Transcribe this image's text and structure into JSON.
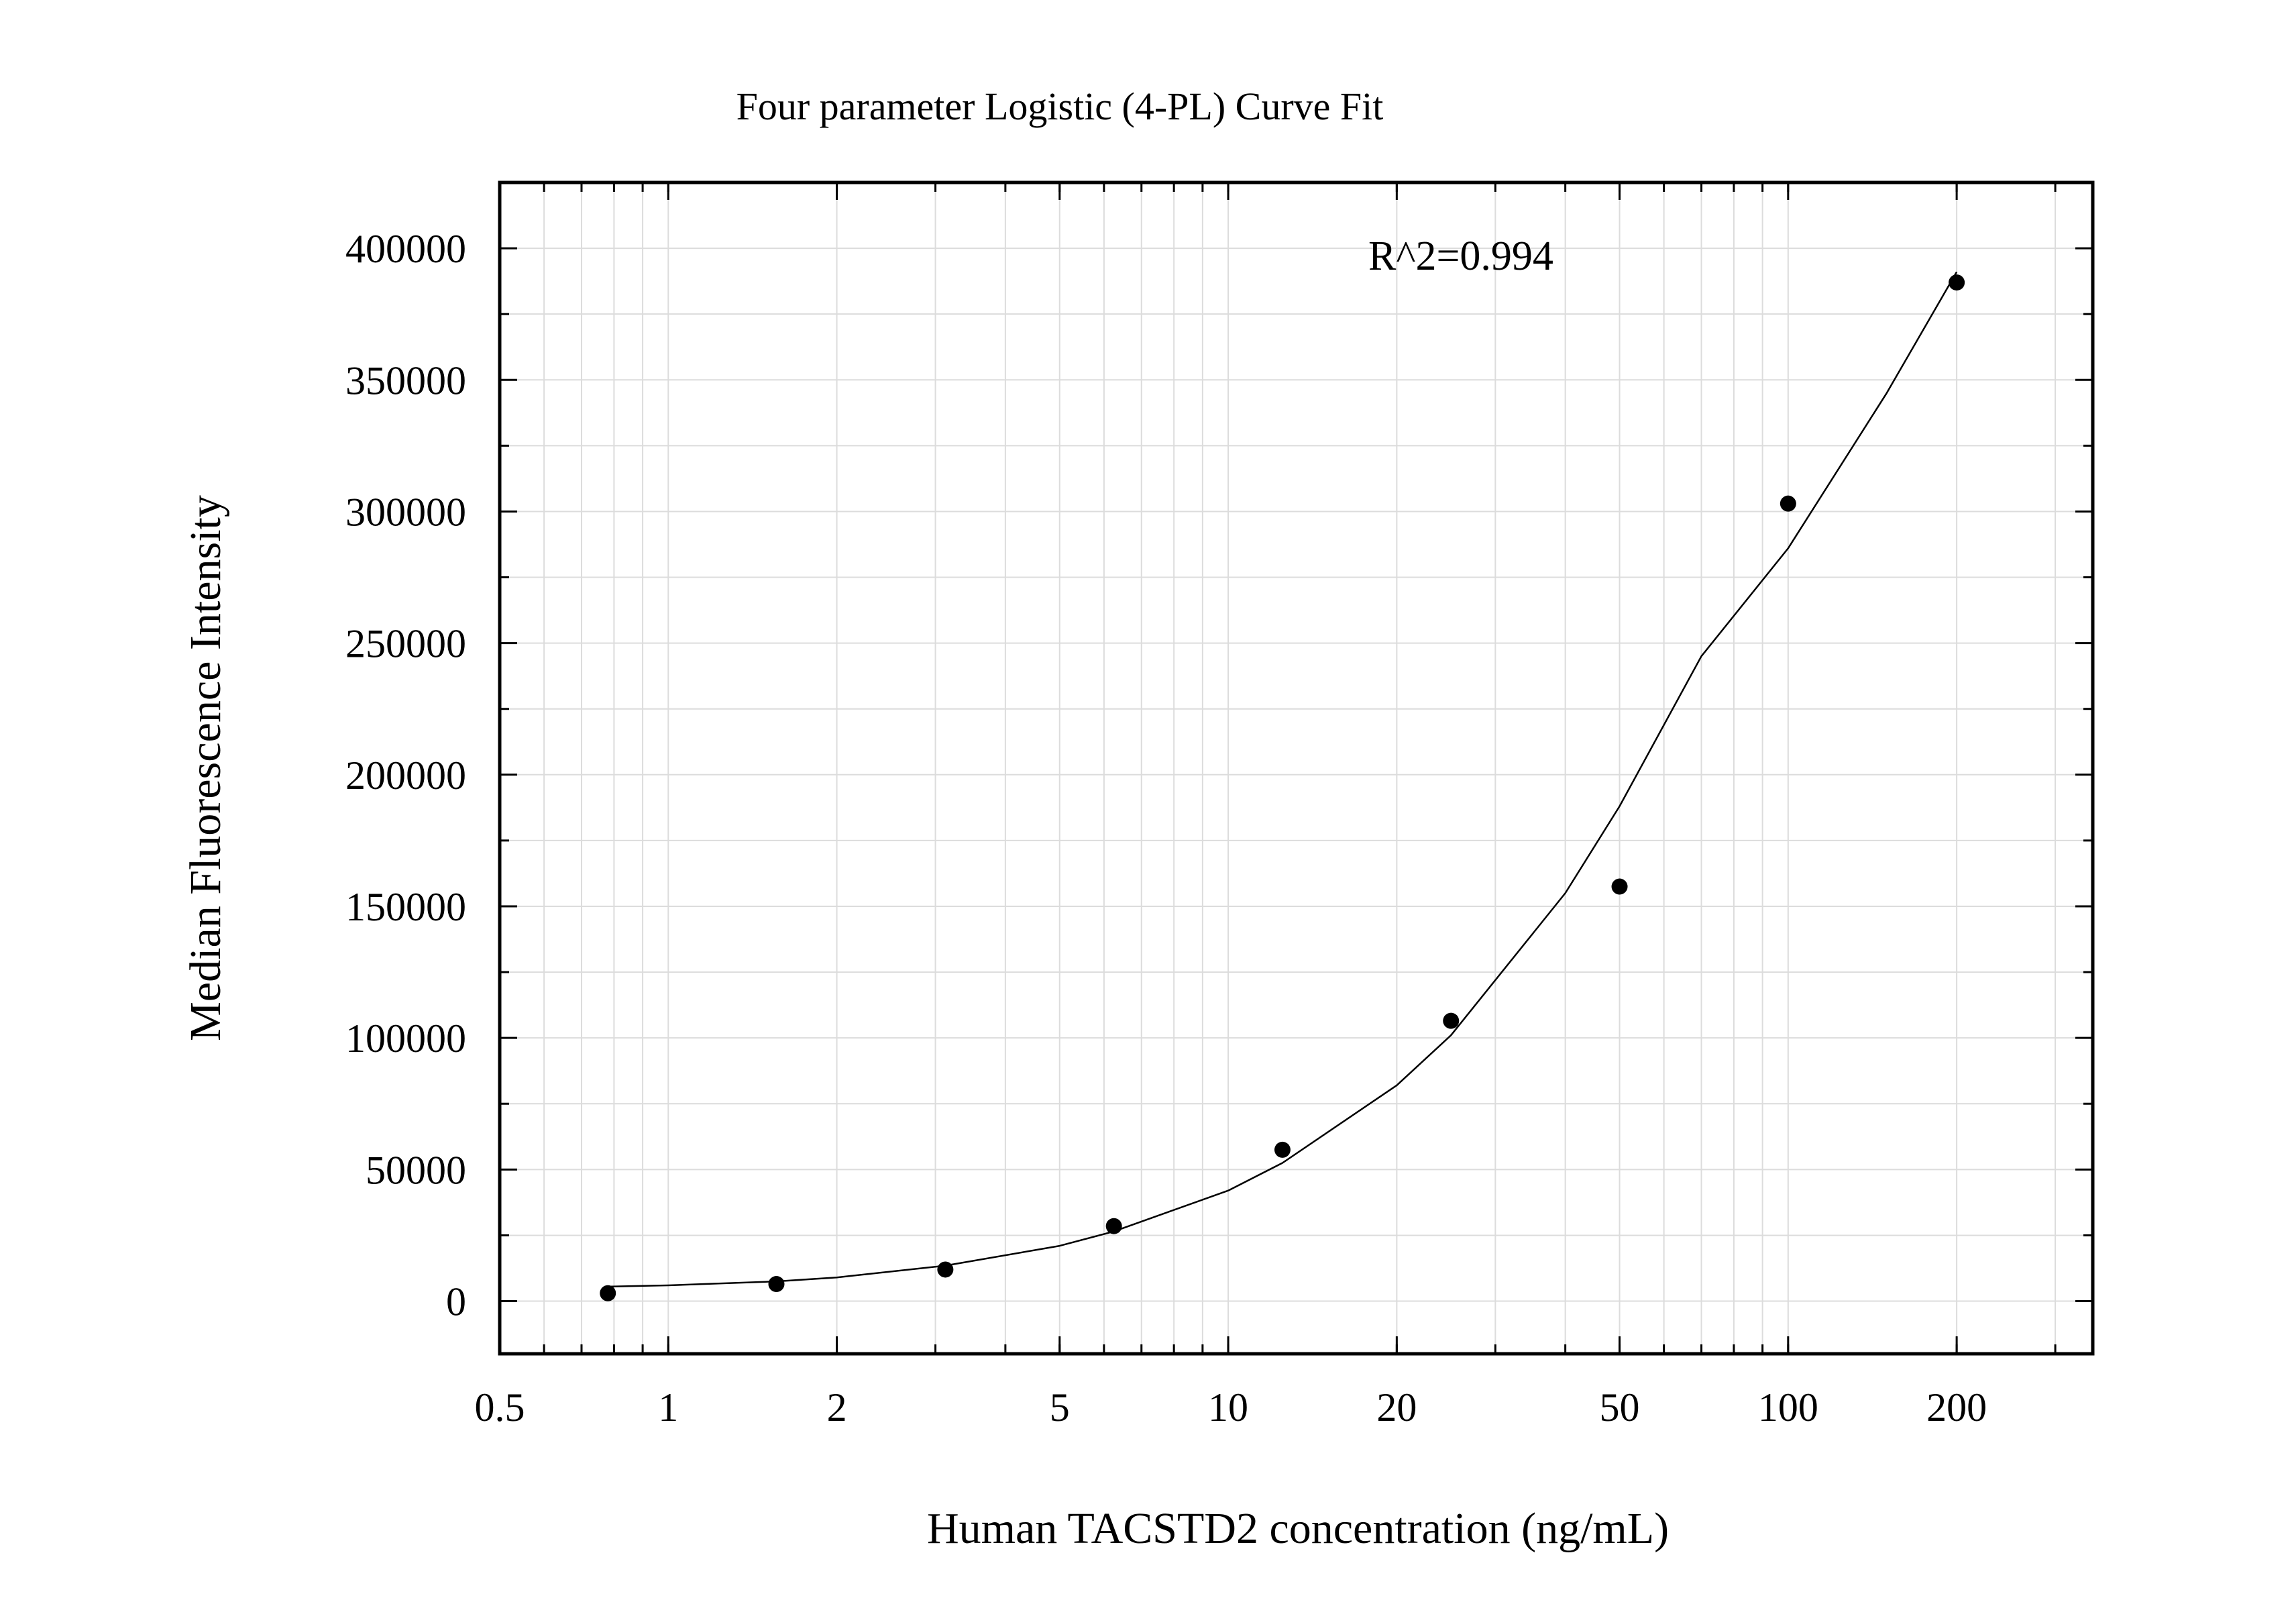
{
  "chart_data": {
    "type": "scatter",
    "title": "Four parameter Logistic (4-PL) Curve Fit",
    "xlabel": "Human TACSTD2 concentration (ng/mL)",
    "ylabel": "Median Fluorescence Intensity",
    "x_scale": "log",
    "xlim": [
      0.5,
      350
    ],
    "ylim": [
      -20000,
      425000
    ],
    "x_ticks": [
      0.5,
      1,
      2,
      5,
      10,
      20,
      50,
      100,
      200
    ],
    "x_tick_labels": [
      "0.5",
      "1",
      "2",
      "5",
      "10",
      "20",
      "50",
      "100",
      "200"
    ],
    "y_ticks": [
      0,
      50000,
      100000,
      150000,
      200000,
      250000,
      300000,
      350000,
      400000
    ],
    "y_tick_labels": [
      "0",
      "50000",
      "100000",
      "150000",
      "200000",
      "250000",
      "300000",
      "350000",
      "400000"
    ],
    "grid": true,
    "annotation": "R^2=0.994",
    "series": [
      {
        "kind": "points",
        "x": [
          0.78,
          1.56,
          3.125,
          6.25,
          12.5,
          25,
          50,
          100,
          200
        ],
        "y": [
          3000,
          6500,
          12000,
          28500,
          57500,
          106500,
          157500,
          303000,
          387000
        ]
      },
      {
        "kind": "fit",
        "model": "4-PL",
        "x": [
          0.78,
          1,
          1.56,
          2,
          3.125,
          5,
          6.25,
          10,
          12.5,
          20,
          25,
          40,
          50,
          70,
          100,
          150,
          200
        ],
        "y": [
          5500,
          6000,
          7500,
          9000,
          13500,
          21000,
          26500,
          42000,
          52500,
          82000,
          101000,
          155000,
          188000,
          245000,
          286000,
          345000,
          391000
        ]
      }
    ],
    "colors": {
      "points": "#000000",
      "fit_line": "#000000",
      "grid": "#dcdcdc",
      "axes": "#000000"
    }
  }
}
